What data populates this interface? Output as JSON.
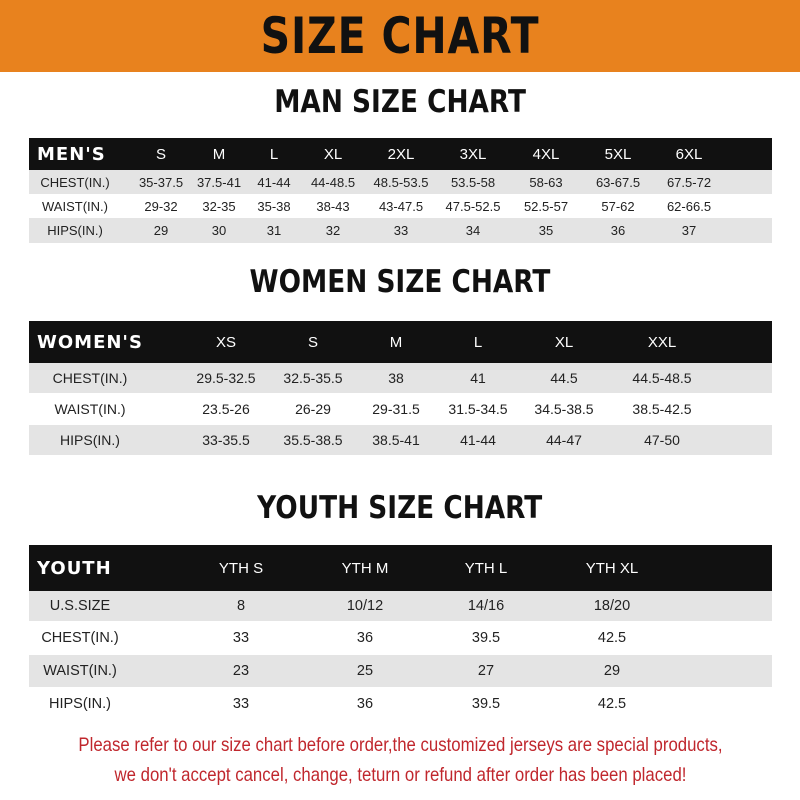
{
  "banner_title": "SIZE CHART",
  "accent_color": "#e8821e",
  "tables": [
    {
      "title": "MAN SIZE CHART",
      "header_label": "MEN'S",
      "sizes": [
        "S",
        "M",
        "L",
        "XL",
        "2XL",
        "3XL",
        "4XL",
        "5XL",
        "6XL"
      ],
      "rows": [
        {
          "label": "CHEST(IN.)",
          "values": [
            "35-37.5",
            "37.5-41",
            "41-44",
            "44-48.5",
            "48.5-53.5",
            "53.5-58",
            "58-63",
            "63-67.5",
            "67.5-72"
          ]
        },
        {
          "label": "WAIST(IN.)",
          "values": [
            "29-32",
            "32-35",
            "35-38",
            "38-43",
            "43-47.5",
            "47.5-52.5",
            "52.5-57",
            "57-62",
            "62-66.5"
          ]
        },
        {
          "label": "HIPS(IN.)",
          "values": [
            "29",
            "30",
            "31",
            "32",
            "33",
            "34",
            "35",
            "36",
            "37"
          ]
        }
      ]
    },
    {
      "title": "WOMEN SIZE CHART",
      "header_label": "WOMEN'S",
      "sizes": [
        "XS",
        "S",
        "M",
        "L",
        "XL",
        "XXL"
      ],
      "rows": [
        {
          "label": "CHEST(IN.)",
          "values": [
            "29.5-32.5",
            "32.5-35.5",
            "38",
            "41",
            "44.5",
            "44.5-48.5"
          ]
        },
        {
          "label": "WAIST(IN.)",
          "values": [
            "23.5-26",
            "26-29",
            "29-31.5",
            "31.5-34.5",
            "34.5-38.5",
            "38.5-42.5"
          ]
        },
        {
          "label": "HIPS(IN.)",
          "values": [
            "33-35.5",
            "35.5-38.5",
            "38.5-41",
            "41-44",
            "44-47",
            "47-50"
          ]
        }
      ]
    },
    {
      "title": "YOUTH SIZE CHART",
      "header_label": "YOUTH",
      "sizes": [
        "YTH S",
        "YTH M",
        "YTH L",
        "YTH XL"
      ],
      "rows": [
        {
          "label": "U.S.SIZE",
          "values": [
            "8",
            "10/12",
            "14/16",
            "18/20"
          ]
        },
        {
          "label": "CHEST(IN.)",
          "values": [
            "33",
            "36",
            "39.5",
            "42.5"
          ]
        },
        {
          "label": "WAIST(IN.)",
          "values": [
            "23",
            "25",
            "27",
            "29"
          ]
        },
        {
          "label": "HIPS(IN.)",
          "values": [
            "33",
            "36",
            "39.5",
            "42.5"
          ]
        }
      ]
    }
  ],
  "notice": [
    "Please refer to our size chart before order,the customized jerseys are special products,",
    "we don't accept cancel, change, teturn or refund after order has been placed!"
  ]
}
